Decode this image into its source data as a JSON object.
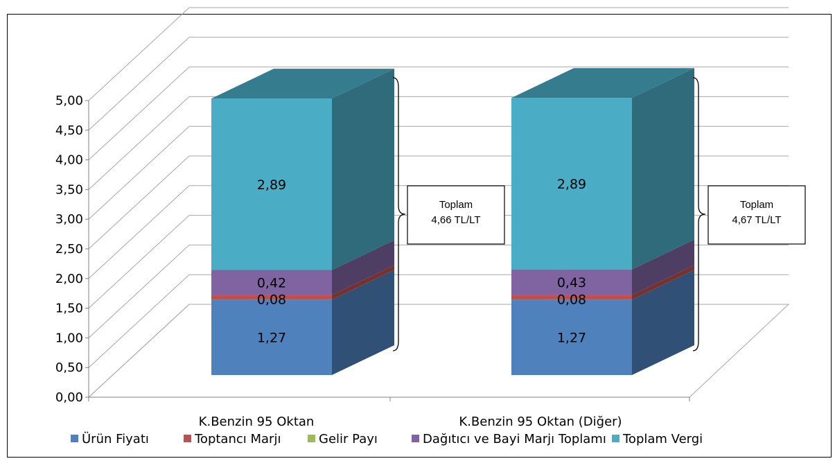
{
  "chart_data": {
    "type": "bar",
    "stacked": true,
    "three_d": true,
    "categories": [
      "K.Benzin 95 Oktan",
      "K.Benzin 95 Oktan (Diğer)"
    ],
    "series": [
      {
        "name": "Ürün Fiyatı",
        "color": "#4F81BD",
        "values": [
          1.27,
          1.27
        ],
        "labels": [
          "1,27",
          "1,27"
        ]
      },
      {
        "name": "Toptancı Marjı",
        "color": "#C0504D",
        "values": [
          0.08,
          0.08
        ],
        "labels": [
          "0,08",
          "0,08"
        ]
      },
      {
        "name": "Gelir Payı",
        "color": "#9BBB59",
        "values": [
          0.0,
          0.0
        ],
        "labels": [
          "",
          ""
        ]
      },
      {
        "name": "Dağıtıcı ve Bayi Marjı Toplamı",
        "color": "#8064A2",
        "values": [
          0.42,
          0.43
        ],
        "labels": [
          "0,42",
          "0,43"
        ]
      },
      {
        "name": "Toplam Vergi",
        "color": "#4BACC6",
        "values": [
          2.89,
          2.89
        ],
        "labels": [
          "2,89",
          "2,89"
        ]
      }
    ],
    "ylim": [
      0,
      5
    ],
    "yticks": [
      "0,00",
      "0,50",
      "1,00",
      "1,50",
      "2,00",
      "2,50",
      "3,00",
      "3,50",
      "4,00",
      "4,50",
      "5,00"
    ],
    "grid": true,
    "legend_position": "bottom",
    "annotations": [
      {
        "category": 0,
        "lines": [
          "Toplam",
          "4,66 TL/LT"
        ]
      },
      {
        "category": 1,
        "lines": [
          "Toplam",
          "4,67 TL/LT"
        ]
      }
    ]
  }
}
